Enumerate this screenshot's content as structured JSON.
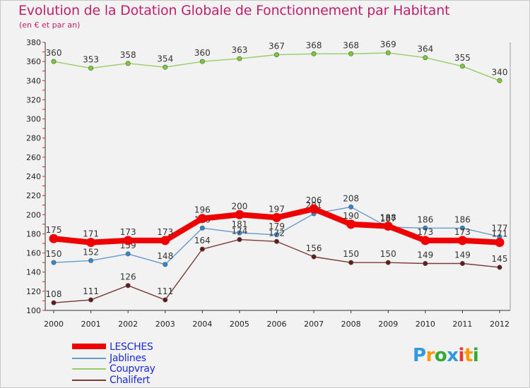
{
  "header": {
    "title": "Evolution de la Dotation Globale de Fonctionnement par Habitant",
    "subtitle": "(en € et par an)"
  },
  "chart_data": {
    "type": "line",
    "title": "Evolution de la Dotation Globale de Fonctionnement par Habitant",
    "subtitle": "(en € et par an)",
    "xlabel": "",
    "ylabel": "",
    "x": [
      "2000",
      "2001",
      "2002",
      "2003",
      "2004",
      "2005",
      "2006",
      "2007",
      "2008",
      "2009",
      "2010",
      "2011",
      "2012"
    ],
    "ylim": [
      100,
      380
    ],
    "yticks": [
      100,
      120,
      140,
      160,
      180,
      200,
      220,
      240,
      260,
      280,
      300,
      320,
      340,
      360,
      380
    ],
    "grid": false,
    "legend_position": "bottom-left",
    "series": [
      {
        "name": "Coupvray",
        "color": "#99cc66",
        "marker_color": "#77cc33",
        "values": [
          360,
          353,
          358,
          354,
          360,
          363,
          367,
          368,
          368,
          369,
          364,
          355,
          340
        ]
      },
      {
        "name": "Jablines",
        "color": "#6699cc",
        "marker_color": "#3388cc",
        "values": [
          150,
          152,
          159,
          148,
          186,
          181,
          179,
          201,
          208,
          187,
          186,
          186,
          177
        ]
      },
      {
        "name": "Chalifert",
        "color": "#7a3a3a",
        "marker_color": "#661a1a",
        "values": [
          108,
          111,
          126,
          111,
          164,
          174,
          172,
          156,
          150,
          150,
          149,
          149,
          145
        ]
      },
      {
        "name": "LESCHES",
        "color": "#ee0000",
        "marker_color": "#ee0000",
        "values": [
          175,
          171,
          173,
          173,
          196,
          200,
          197,
          206,
          190,
          188,
          173,
          173,
          171
        ]
      }
    ]
  },
  "legend": {
    "items": [
      {
        "name": "LESCHES",
        "color": "#ee0000"
      },
      {
        "name": "Jablines",
        "color": "#6699cc"
      },
      {
        "name": "Coupvray",
        "color": "#99cc66"
      },
      {
        "name": "Chalifert",
        "color": "#7a3a3a"
      }
    ]
  },
  "logo": {
    "letters": [
      "P",
      "r",
      "o",
      "x",
      "i",
      "t",
      "i"
    ],
    "colors": [
      "#3399dd",
      "#ff9900",
      "#33aa33",
      "#3399dd",
      "#ee3333",
      "#ff9900",
      "#33aa33"
    ]
  }
}
